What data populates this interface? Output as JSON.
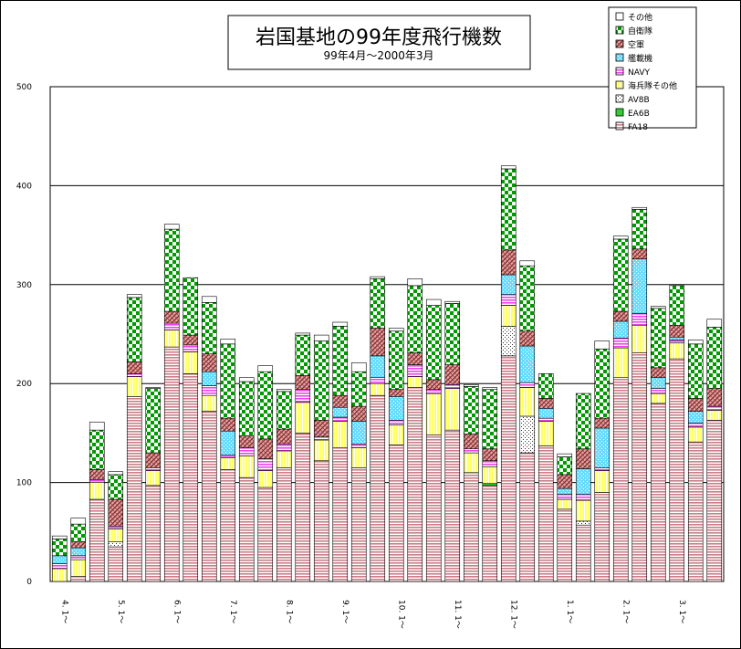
{
  "chart_data": {
    "type": "bar",
    "stacked": true,
    "title": "岩国基地の99年度飛行機数",
    "subtitle": "99年4月～2000年3月",
    "ylim": [
      0,
      500
    ],
    "y_ticks": [
      0,
      100,
      200,
      300,
      400,
      500
    ],
    "grid": true,
    "legend_position": "top-right",
    "month_labels": [
      "4. 1～",
      "5. 1～",
      "6. 1～",
      "7. 1～",
      "8. 1～",
      "9. 1～",
      "10. 1～",
      "11. 1～",
      "12. 1～",
      "1. 1～",
      "2. 1～",
      "3. 1～"
    ],
    "series": [
      {
        "name": "FA18",
        "color": "#e8b4b8",
        "pattern": "hstripe",
        "values": [
          0,
          5,
          83,
          35,
          187,
          97,
          237,
          210,
          172,
          113,
          105,
          95,
          115,
          150,
          122,
          135,
          115,
          188,
          138,
          196,
          148,
          153,
          110,
          97,
          228,
          130,
          137,
          73,
          57,
          90,
          206,
          231,
          180,
          225,
          141,
          163
        ]
      },
      {
        "name": "EA6B",
        "color": "#33cc33",
        "pattern": "solid",
        "values": [
          0,
          0,
          0,
          0,
          0,
          0,
          0,
          0,
          0,
          0,
          0,
          0,
          0,
          0,
          0,
          0,
          0,
          0,
          0,
          0,
          0,
          0,
          0,
          2,
          0,
          0,
          0,
          0,
          0,
          0,
          0,
          0,
          0,
          0,
          0,
          0
        ]
      },
      {
        "name": "AV8B",
        "color": "#ffffff",
        "pattern": "dots",
        "values": [
          0,
          0,
          0,
          5,
          0,
          0,
          0,
          0,
          0,
          0,
          0,
          0,
          0,
          0,
          0,
          0,
          0,
          0,
          0,
          0,
          0,
          0,
          0,
          0,
          30,
          37,
          0,
          0,
          4,
          0,
          0,
          0,
          0,
          0,
          0,
          0
        ]
      },
      {
        "name": "海兵隊その他",
        "color": "#ffff66",
        "pattern": "vstripe",
        "values": [
          13,
          17,
          17,
          13,
          20,
          15,
          17,
          22,
          16,
          12,
          22,
          17,
          17,
          31,
          21,
          27,
          20,
          12,
          20,
          11,
          42,
          42,
          20,
          17,
          21,
          29,
          25,
          10,
          21,
          22,
          30,
          28,
          10,
          16,
          15,
          10
        ]
      },
      {
        "name": "NAVY",
        "color": "#ff66ff",
        "pattern": "hstripe",
        "values": [
          5,
          4,
          3,
          3,
          3,
          3,
          7,
          7,
          10,
          3,
          8,
          12,
          7,
          13,
          3,
          4,
          4,
          6,
          5,
          12,
          4,
          4,
          4,
          6,
          11,
          5,
          3,
          5,
          6,
          3,
          10,
          12,
          5,
          3,
          4,
          4
        ]
      },
      {
        "name": "艦載機",
        "color": "#66ddff",
        "pattern": "dots",
        "values": [
          8,
          8,
          0,
          0,
          0,
          0,
          0,
          0,
          14,
          24,
          0,
          0,
          0,
          0,
          0,
          10,
          23,
          22,
          24,
          0,
          0,
          0,
          0,
          0,
          20,
          37,
          10,
          6,
          26,
          40,
          17,
          55,
          11,
          3,
          12,
          0
        ]
      },
      {
        "name": "空軍",
        "color": "#e8a0a0",
        "pattern": "diag",
        "values": [
          0,
          6,
          10,
          27,
          12,
          15,
          12,
          10,
          18,
          13,
          12,
          20,
          15,
          14,
          17,
          12,
          15,
          28,
          7,
          12,
          10,
          20,
          15,
          12,
          25,
          15,
          10,
          14,
          20,
          10,
          10,
          10,
          10,
          12,
          13,
          18
        ]
      },
      {
        "name": "自衛隊",
        "color": "#00aa00",
        "pattern": "checker",
        "values": [
          17,
          18,
          40,
          25,
          65,
          65,
          83,
          58,
          52,
          75,
          55,
          68,
          38,
          41,
          80,
          70,
          35,
          50,
          59,
          68,
          75,
          62,
          48,
          60,
          82,
          66,
          25,
          18,
          56,
          70,
          73,
          40,
          60,
          40,
          55,
          62
        ]
      },
      {
        "name": "その他",
        "color": "#ffffff",
        "pattern": "solid",
        "values": [
          3,
          6,
          8,
          3,
          3,
          1,
          5,
          0,
          6,
          5,
          4,
          6,
          2,
          2,
          6,
          4,
          9,
          2,
          3,
          7,
          6,
          2,
          2,
          2,
          3,
          5,
          0,
          3,
          0,
          8,
          3,
          2,
          2,
          0,
          4,
          8
        ]
      }
    ]
  }
}
